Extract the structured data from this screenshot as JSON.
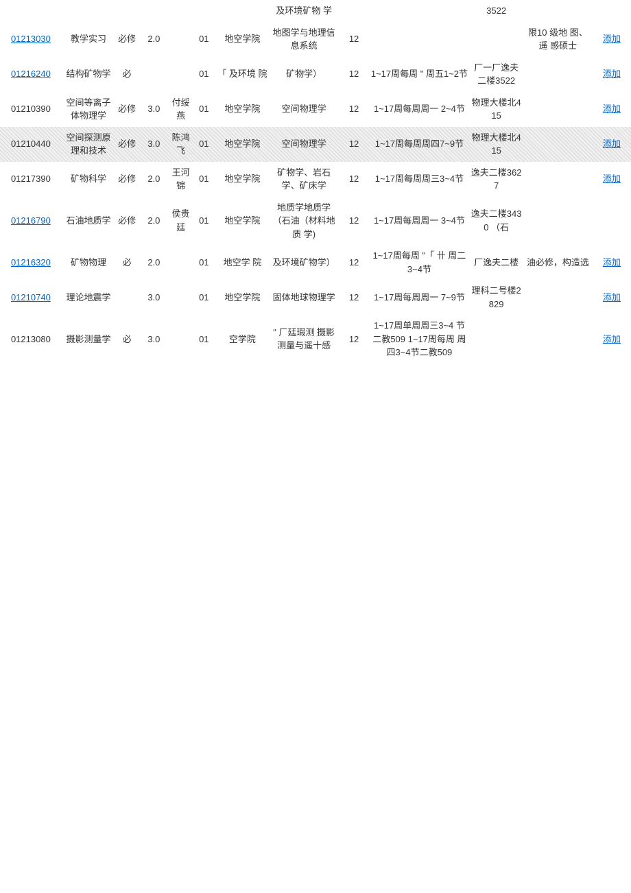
{
  "fragments": {
    "top_major": "及环境矿物 学",
    "top_place": "3522"
  },
  "rows": [
    {
      "code": "01213030",
      "code_link": true,
      "code_underline": true,
      "name": "教学实习",
      "type": "必修",
      "credit": "2.0",
      "teacher": "",
      "class": "01",
      "school": "地空学院",
      "major": "地图学与地理信息系统",
      "num": "12",
      "time": "",
      "place": "",
      "note": "限10 级地 图、遥 感硕士",
      "op": "添加",
      "hatched": false
    },
    {
      "code": "01216240",
      "code_link": true,
      "code_underline": true,
      "name": "结构矿物学",
      "type": "必",
      "credit": "",
      "teacher": "",
      "class": "01",
      "school": "「 及环境 院",
      "major": "矿物学）",
      "num": "12",
      "time": "1~17周每周 \" 周五1~2节",
      "place": "厂一厂逸夫二楼3522",
      "note": "",
      "op": "添加",
      "hatched": false
    },
    {
      "code": "01210390",
      "code_link": false,
      "code_underline": false,
      "name": "空间等离子体物理学",
      "type": "必修",
      "credit": "3.0",
      "teacher": "付绥燕",
      "class": "01",
      "school": "地空学院",
      "major": "空间物理学",
      "num": "12",
      "time": "1~17周每周周一 2~4节",
      "place": "物理大楼北415",
      "note": "",
      "op": "添加",
      "hatched": false
    },
    {
      "code": "01210440",
      "code_link": false,
      "code_underline": false,
      "name": "空间探测原理和技术",
      "type": "必修",
      "credit": "3.0",
      "teacher": "陈鸿飞",
      "class": "01",
      "school": "地空学院",
      "major": "空间物理学",
      "num": "12",
      "time": "1~17周每周周四7~9节",
      "place": "物理大楼北415",
      "note": "",
      "op": "添加",
      "hatched": true
    },
    {
      "code": "01217390",
      "code_link": false,
      "code_underline": false,
      "name": "矿物科学",
      "type": "必修",
      "credit": "2.0",
      "teacher": "王河锦",
      "class": "01",
      "school": "地空学院",
      "major": "矿物学、岩石学、矿床学",
      "num": "12",
      "time": "1~17周每周周三3~4节",
      "place": "逸夫二楼3627",
      "note": "",
      "op": "添加",
      "hatched": false
    },
    {
      "code": "01216790",
      "code_link": true,
      "code_underline": true,
      "name": "石油地质学",
      "type": "必修",
      "credit": "2.0",
      "teacher": "侯贵廷",
      "class": "01",
      "school": "地空学院",
      "major": "地质学地质学（石油（材料地质 学)",
      "num": "12",
      "time": "1~17周每周周一 3~4节",
      "place": "逸夫二楼3430 （石",
      "note": "",
      "op": "",
      "hatched": false
    },
    {
      "code": "01216320",
      "code_link": true,
      "code_underline": true,
      "name": "矿物物理",
      "type": "必",
      "credit": "2.0",
      "teacher": "",
      "class": "01",
      "school": "地空学 院",
      "major": "及环境矿物学）",
      "num": "12",
      "time": "1~17周每周 \"「 卄 周二3~4节",
      "place": "厂逸夫二楼",
      "note": "油必修，构造选",
      "op": "添加",
      "hatched": false
    },
    {
      "code": "01210740",
      "code_link": true,
      "code_underline": true,
      "name": "理论地震学",
      "type": "",
      "credit": "3.0",
      "teacher": "",
      "class": "01",
      "school": "地空学院",
      "major": "固体地球物理学",
      "num": "12",
      "time": "1~17周每周周一 7~9节",
      "place": "理科二号楼2829",
      "note": "",
      "op": "添加",
      "hatched": false
    },
    {
      "code": "01213080",
      "code_link": false,
      "code_underline": false,
      "name": "摄影测量学",
      "type": "必",
      "credit": "3.0",
      "teacher": "",
      "class": "01",
      "school": "空学院",
      "major": "\" 厂廷瑕测 摄影测量与遥十感",
      "num": "12",
      "time": "1~17周单周周三3~4 节二教509 1~17周每周 周四3~4节二教509",
      "place": "",
      "note": "",
      "op": "添加",
      "hatched": false
    }
  ],
  "op_label": "添加",
  "link_color": "#0066cc"
}
